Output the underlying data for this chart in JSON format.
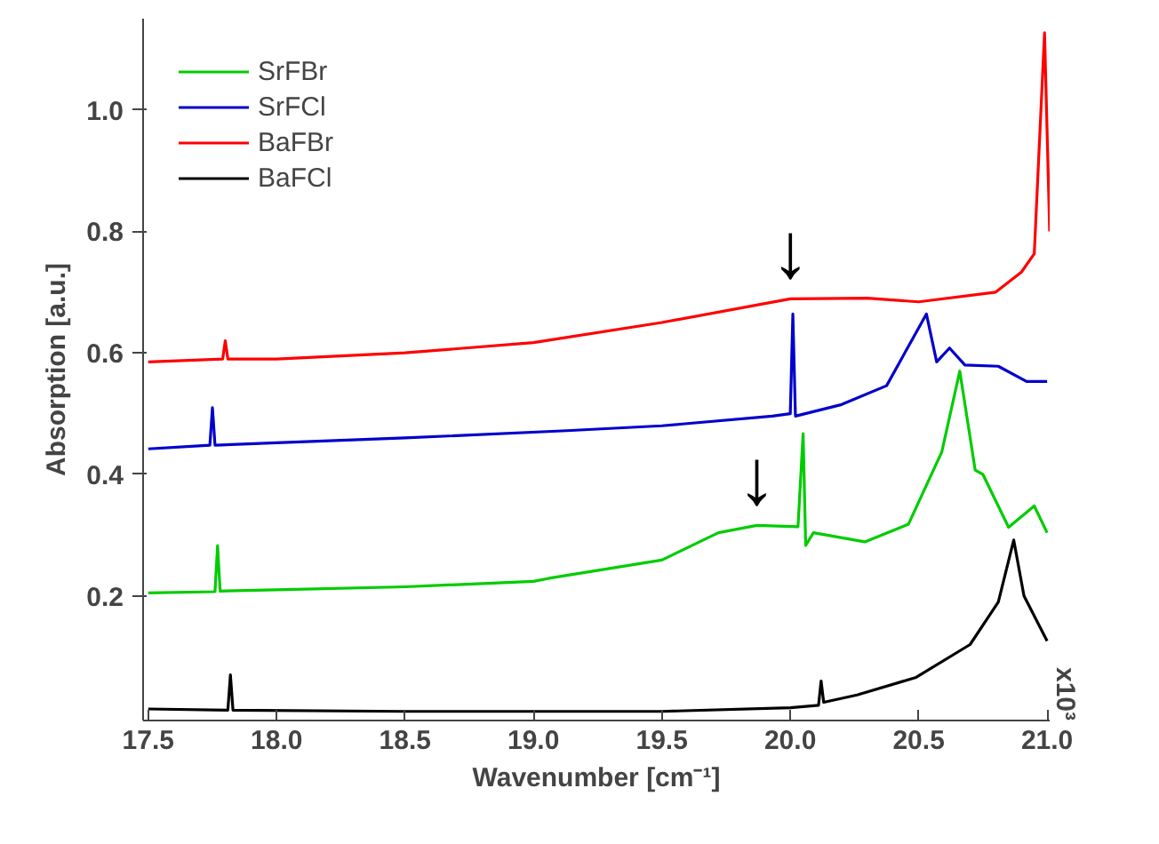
{
  "chart_data": {
    "type": "line",
    "xlabel": "Wavenumber [cm⁻¹]",
    "ylabel": "Absorption [a.u.]",
    "xlim": [
      17.48,
      21.01
    ],
    "ylim": [
      -0.005,
      1.15
    ],
    "xticks": [
      17.5,
      {
        "value": 18.0,
        "label": "18.0"
      },
      18.5,
      {
        "value": 19.0,
        "label": "19.0"
      },
      19.5,
      {
        "value": 20.0,
        "label": "20.0"
      },
      20.5,
      {
        "value": 21.0,
        "label": "21.0"
      }
    ],
    "yticks": [
      0.2,
      0.4,
      0.6,
      0.8,
      {
        "value": 1.0,
        "label": "1.0"
      }
    ],
    "grid": false,
    "legend": "top left",
    "marker": "none",
    "line_style": "solid",
    "annotations": [
      {
        "text": "↓",
        "x": 20.0,
        "y": 0.69
      },
      {
        "text": "↓",
        "x": 19.87,
        "y": 0.316
      },
      "x10³"
    ],
    "series": [
      {
        "name": "SrFBr",
        "color": "#00cc00",
        "x": [
          17.5,
          17.76,
          17.77,
          17.78,
          18.0,
          18.5,
          19.0,
          19.06,
          19.5,
          19.72,
          19.87,
          20.03,
          20.05,
          20.06,
          20.09,
          20.29,
          20.46,
          20.59,
          20.66,
          20.72,
          20.75,
          20.85,
          20.95,
          21.0
        ],
        "values": [
          0.205,
          0.207,
          0.283,
          0.208,
          0.21,
          0.215,
          0.224,
          0.229,
          0.259,
          0.304,
          0.316,
          0.314,
          0.467,
          0.283,
          0.304,
          0.289,
          0.318,
          0.437,
          0.57,
          0.407,
          0.4,
          0.313,
          0.348,
          0.304
        ]
      },
      {
        "name": "SrFCl",
        "color": "#0000cc",
        "x": [
          17.5,
          17.74,
          17.75,
          17.76,
          18.0,
          18.5,
          19.13,
          19.5,
          19.93,
          20.0,
          20.01,
          20.02,
          20.2,
          20.375,
          20.53,
          20.57,
          20.62,
          20.68,
          20.81,
          20.92,
          21.0
        ],
        "values": [
          0.442,
          0.448,
          0.51,
          0.448,
          0.452,
          0.46,
          0.472,
          0.48,
          0.496,
          0.5,
          0.664,
          0.496,
          0.515,
          0.546,
          0.664,
          0.585,
          0.608,
          0.58,
          0.578,
          0.553,
          0.553
        ]
      },
      {
        "name": "BaFBr",
        "color": "#ff0000",
        "x": [
          17.5,
          17.79,
          17.8,
          17.81,
          18.0,
          18.5,
          19.0,
          19.5,
          20.0,
          20.3,
          20.5,
          20.8,
          20.9,
          20.95,
          20.99,
          21.01
        ],
        "values": [
          0.585,
          0.59,
          0.62,
          0.59,
          0.59,
          0.6,
          0.617,
          0.65,
          0.689,
          0.69,
          0.684,
          0.7,
          0.733,
          0.763,
          1.127,
          0.8
        ]
      },
      {
        "name": "BaFCl",
        "color": "#000000",
        "x": [
          17.5,
          17.81,
          17.82,
          17.83,
          18.5,
          19.5,
          20.0,
          20.11,
          20.12,
          20.13,
          20.26,
          20.49,
          20.7,
          20.81,
          20.87,
          20.91,
          21.0
        ],
        "values": [
          0.014,
          0.012,
          0.07,
          0.012,
          0.01,
          0.01,
          0.016,
          0.02,
          0.06,
          0.025,
          0.037,
          0.066,
          0.12,
          0.19,
          0.292,
          0.2,
          0.126
        ]
      }
    ]
  }
}
